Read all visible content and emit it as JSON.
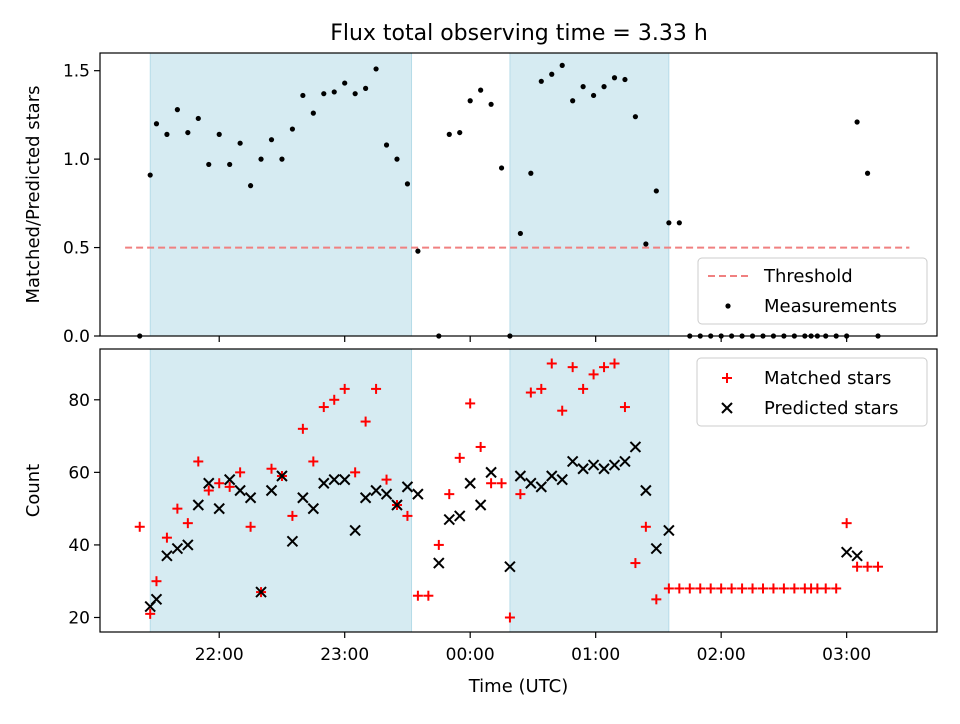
{
  "figure": {
    "title": "Flux total observing time = 3.33 h"
  },
  "chart_data": [
    {
      "type": "scatter",
      "ylabel": "Matched/Predicted stars",
      "xlabel": "",
      "x_unit": "hours",
      "ylim": [
        0,
        1.6
      ],
      "yticks": [
        "0.0",
        "0.5",
        "1.0",
        "1.5"
      ],
      "xlim": [
        21.05,
        3.72
      ],
      "shaded_intervals_utc": [
        [
          "21:27",
          "23:32"
        ],
        [
          "00:19",
          "01:35"
        ]
      ],
      "threshold": {
        "name": "Threshold",
        "value": 0.5,
        "color": "#f08080",
        "style": "dashed"
      },
      "legend": {
        "placement": "lower-right",
        "entries": [
          "Threshold",
          "Measurements"
        ]
      },
      "series": [
        {
          "name": "Measurements",
          "color": "#000000",
          "marker": "dot",
          "x": [
            "21:22",
            "21:27",
            "21:30",
            "21:35",
            "21:40",
            "21:45",
            "21:50",
            "21:55",
            "22:00",
            "22:05",
            "22:10",
            "22:15",
            "22:20",
            "22:25",
            "22:30",
            "22:35",
            "22:40",
            "22:45",
            "22:50",
            "22:55",
            "23:00",
            "23:05",
            "23:10",
            "23:15",
            "23:20",
            "23:25",
            "23:30",
            "23:35",
            "23:45",
            "23:50",
            "23:55",
            "00:00",
            "00:05",
            "00:10",
            "00:15",
            "00:19",
            "00:24",
            "00:29",
            "00:34",
            "00:39",
            "00:44",
            "00:49",
            "00:54",
            "00:59",
            "01:04",
            "01:09",
            "01:14",
            "01:19",
            "01:24",
            "01:29",
            "01:35",
            "01:40",
            "01:45",
            "01:50",
            "01:55",
            "02:00",
            "02:05",
            "02:10",
            "02:15",
            "02:20",
            "02:25",
            "02:30",
            "02:35",
            "02:40",
            "02:43",
            "02:46",
            "02:50",
            "02:55",
            "03:00",
            "03:05",
            "03:10",
            "03:15"
          ],
          "y": [
            0.0,
            0.91,
            1.2,
            1.14,
            1.28,
            1.15,
            1.23,
            0.97,
            1.14,
            0.97,
            1.09,
            0.85,
            1.0,
            1.11,
            1.0,
            1.17,
            1.36,
            1.26,
            1.37,
            1.38,
            1.43,
            1.37,
            1.4,
            1.51,
            1.08,
            1.0,
            0.86,
            0.48,
            0.0,
            1.14,
            1.15,
            1.33,
            1.39,
            1.31,
            0.95,
            0.0,
            0.58,
            0.92,
            1.44,
            1.48,
            1.53,
            1.33,
            1.41,
            1.36,
            1.41,
            1.46,
            1.45,
            1.24,
            0.52,
            0.82,
            0.64,
            0.64,
            0.0,
            0.0,
            0.0,
            0.0,
            0.0,
            0.0,
            0.0,
            0.0,
            0.0,
            0.0,
            0.0,
            0.0,
            0.0,
            0.0,
            0.0,
            0.0,
            0.0,
            1.21,
            0.92,
            0.0
          ]
        }
      ]
    },
    {
      "type": "scatter",
      "ylabel": "Count",
      "xlabel": "Time (UTC)",
      "ylim": [
        16,
        94
      ],
      "yticks": [
        "20",
        "40",
        "60",
        "80"
      ],
      "xticks": [
        "22:00",
        "23:00",
        "00:00",
        "01:00",
        "02:00",
        "03:00"
      ],
      "legend": {
        "placement": "top-right",
        "entries": [
          "Matched stars",
          "Predicted stars"
        ]
      },
      "series": [
        {
          "name": "Matched stars",
          "color": "#ff0000",
          "marker": "plus",
          "x": [
            "21:22",
            "21:27",
            "21:30",
            "21:35",
            "21:40",
            "21:45",
            "21:50",
            "21:55",
            "22:00",
            "22:05",
            "22:10",
            "22:15",
            "22:20",
            "22:25",
            "22:30",
            "22:35",
            "22:40",
            "22:45",
            "22:50",
            "22:55",
            "23:00",
            "23:05",
            "23:10",
            "23:15",
            "23:20",
            "23:25",
            "23:30",
            "23:35",
            "23:40",
            "23:45",
            "23:50",
            "23:55",
            "00:00",
            "00:05",
            "00:10",
            "00:15",
            "00:19",
            "00:24",
            "00:29",
            "00:34",
            "00:39",
            "00:44",
            "00:49",
            "00:54",
            "00:59",
            "01:04",
            "01:09",
            "01:14",
            "01:19",
            "01:24",
            "01:29",
            "01:35",
            "01:40",
            "01:45",
            "01:50",
            "01:55",
            "02:00",
            "02:05",
            "02:10",
            "02:15",
            "02:20",
            "02:25",
            "02:30",
            "02:35",
            "02:40",
            "02:43",
            "02:46",
            "02:50",
            "02:55",
            "03:00",
            "03:05",
            "03:10",
            "03:15"
          ],
          "y": [
            45,
            21,
            30,
            42,
            50,
            46,
            63,
            55,
            57,
            56,
            60,
            45,
            27,
            61,
            59,
            48,
            72,
            63,
            78,
            80,
            83,
            60,
            74,
            83,
            58,
            51,
            48,
            26,
            26,
            40,
            54,
            64,
            79,
            67,
            57,
            57,
            20,
            54,
            82,
            83,
            90,
            77,
            89,
            83,
            87,
            89,
            90,
            78,
            35,
            45,
            25,
            28,
            28,
            28,
            28,
            28,
            28,
            28,
            28,
            28,
            28,
            28,
            28,
            28,
            28,
            28,
            28,
            28,
            28,
            46,
            34,
            34,
            34
          ]
        },
        {
          "name": "Predicted stars",
          "color": "#000000",
          "marker": "x",
          "x": [
            "21:27",
            "21:30",
            "21:35",
            "21:40",
            "21:45",
            "21:50",
            "21:55",
            "22:00",
            "22:05",
            "22:10",
            "22:15",
            "22:20",
            "22:25",
            "22:30",
            "22:35",
            "22:40",
            "22:45",
            "22:50",
            "22:55",
            "23:00",
            "23:05",
            "23:10",
            "23:15",
            "23:20",
            "23:25",
            "23:30",
            "23:35",
            "23:45",
            "23:50",
            "23:55",
            "00:00",
            "00:05",
            "00:10",
            "00:19",
            "00:24",
            "00:29",
            "00:34",
            "00:39",
            "00:44",
            "00:49",
            "00:54",
            "00:59",
            "01:04",
            "01:09",
            "01:14",
            "01:19",
            "01:24",
            "01:29",
            "01:35",
            "03:00",
            "03:05"
          ],
          "y": [
            23,
            25,
            37,
            39,
            40,
            51,
            57,
            50,
            58,
            55,
            53,
            27,
            55,
            59,
            41,
            53,
            50,
            57,
            58,
            58,
            44,
            53,
            55,
            54,
            51,
            56,
            54,
            35,
            47,
            48,
            57,
            51,
            60,
            34,
            59,
            57,
            56,
            59,
            58,
            63,
            61,
            62,
            61,
            62,
            63,
            67,
            55,
            39,
            44,
            38,
            37
          ]
        }
      ]
    }
  ]
}
